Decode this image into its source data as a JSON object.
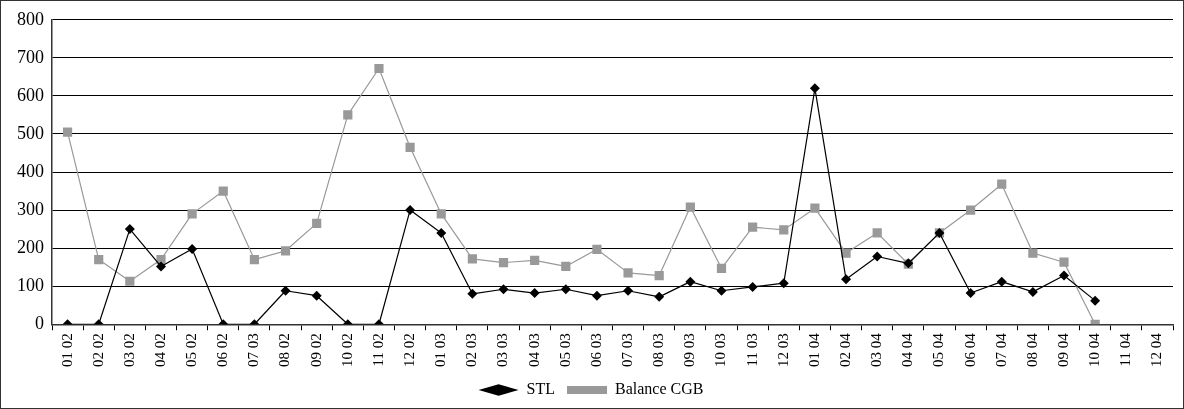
{
  "chart_data": {
    "type": "line",
    "categories": [
      "01 02",
      "02 02",
      "03 02",
      "04 02",
      "05 02",
      "06 02",
      "07 03",
      "08 02",
      "09 02",
      "10 02",
      "11 02",
      "12 02",
      "01 03",
      "02 03",
      "03 03",
      "04 03",
      "05 03",
      "06 03",
      "07 03",
      "08 03",
      "09 03",
      "10 03",
      "11 03",
      "12 03",
      "01 04",
      "02 04",
      "03 04",
      "04 04",
      "05 04",
      "06 04",
      "07 04",
      "08 04",
      "09 04",
      "10 04",
      "11 04",
      "12 04"
    ],
    "series": [
      {
        "name": "STL",
        "color": "#000000",
        "marker": "diamond",
        "values": [
          0,
          0,
          250,
          152,
          198,
          0,
          0,
          88,
          75,
          0,
          0,
          300,
          240,
          80,
          92,
          82,
          92,
          75,
          88,
          72,
          112,
          88,
          98,
          108,
          620,
          118,
          178,
          160,
          240,
          82,
          112,
          85,
          128,
          62,
          null,
          null
        ]
      },
      {
        "name": "Balance CGB",
        "color": "#999999",
        "marker": "square",
        "values": [
          505,
          170,
          113,
          170,
          290,
          350,
          170,
          193,
          265,
          550,
          672,
          465,
          290,
          172,
          162,
          168,
          152,
          197,
          135,
          128,
          308,
          147,
          255,
          248,
          305,
          187,
          240,
          158,
          240,
          300,
          368,
          187,
          163,
          0,
          null,
          null
        ]
      }
    ],
    "ylim": [
      0,
      800
    ],
    "yticks": [
      0,
      100,
      200,
      300,
      400,
      500,
      600,
      700,
      800
    ],
    "grid": "y",
    "legend": "bottom",
    "line_style": "solid"
  }
}
